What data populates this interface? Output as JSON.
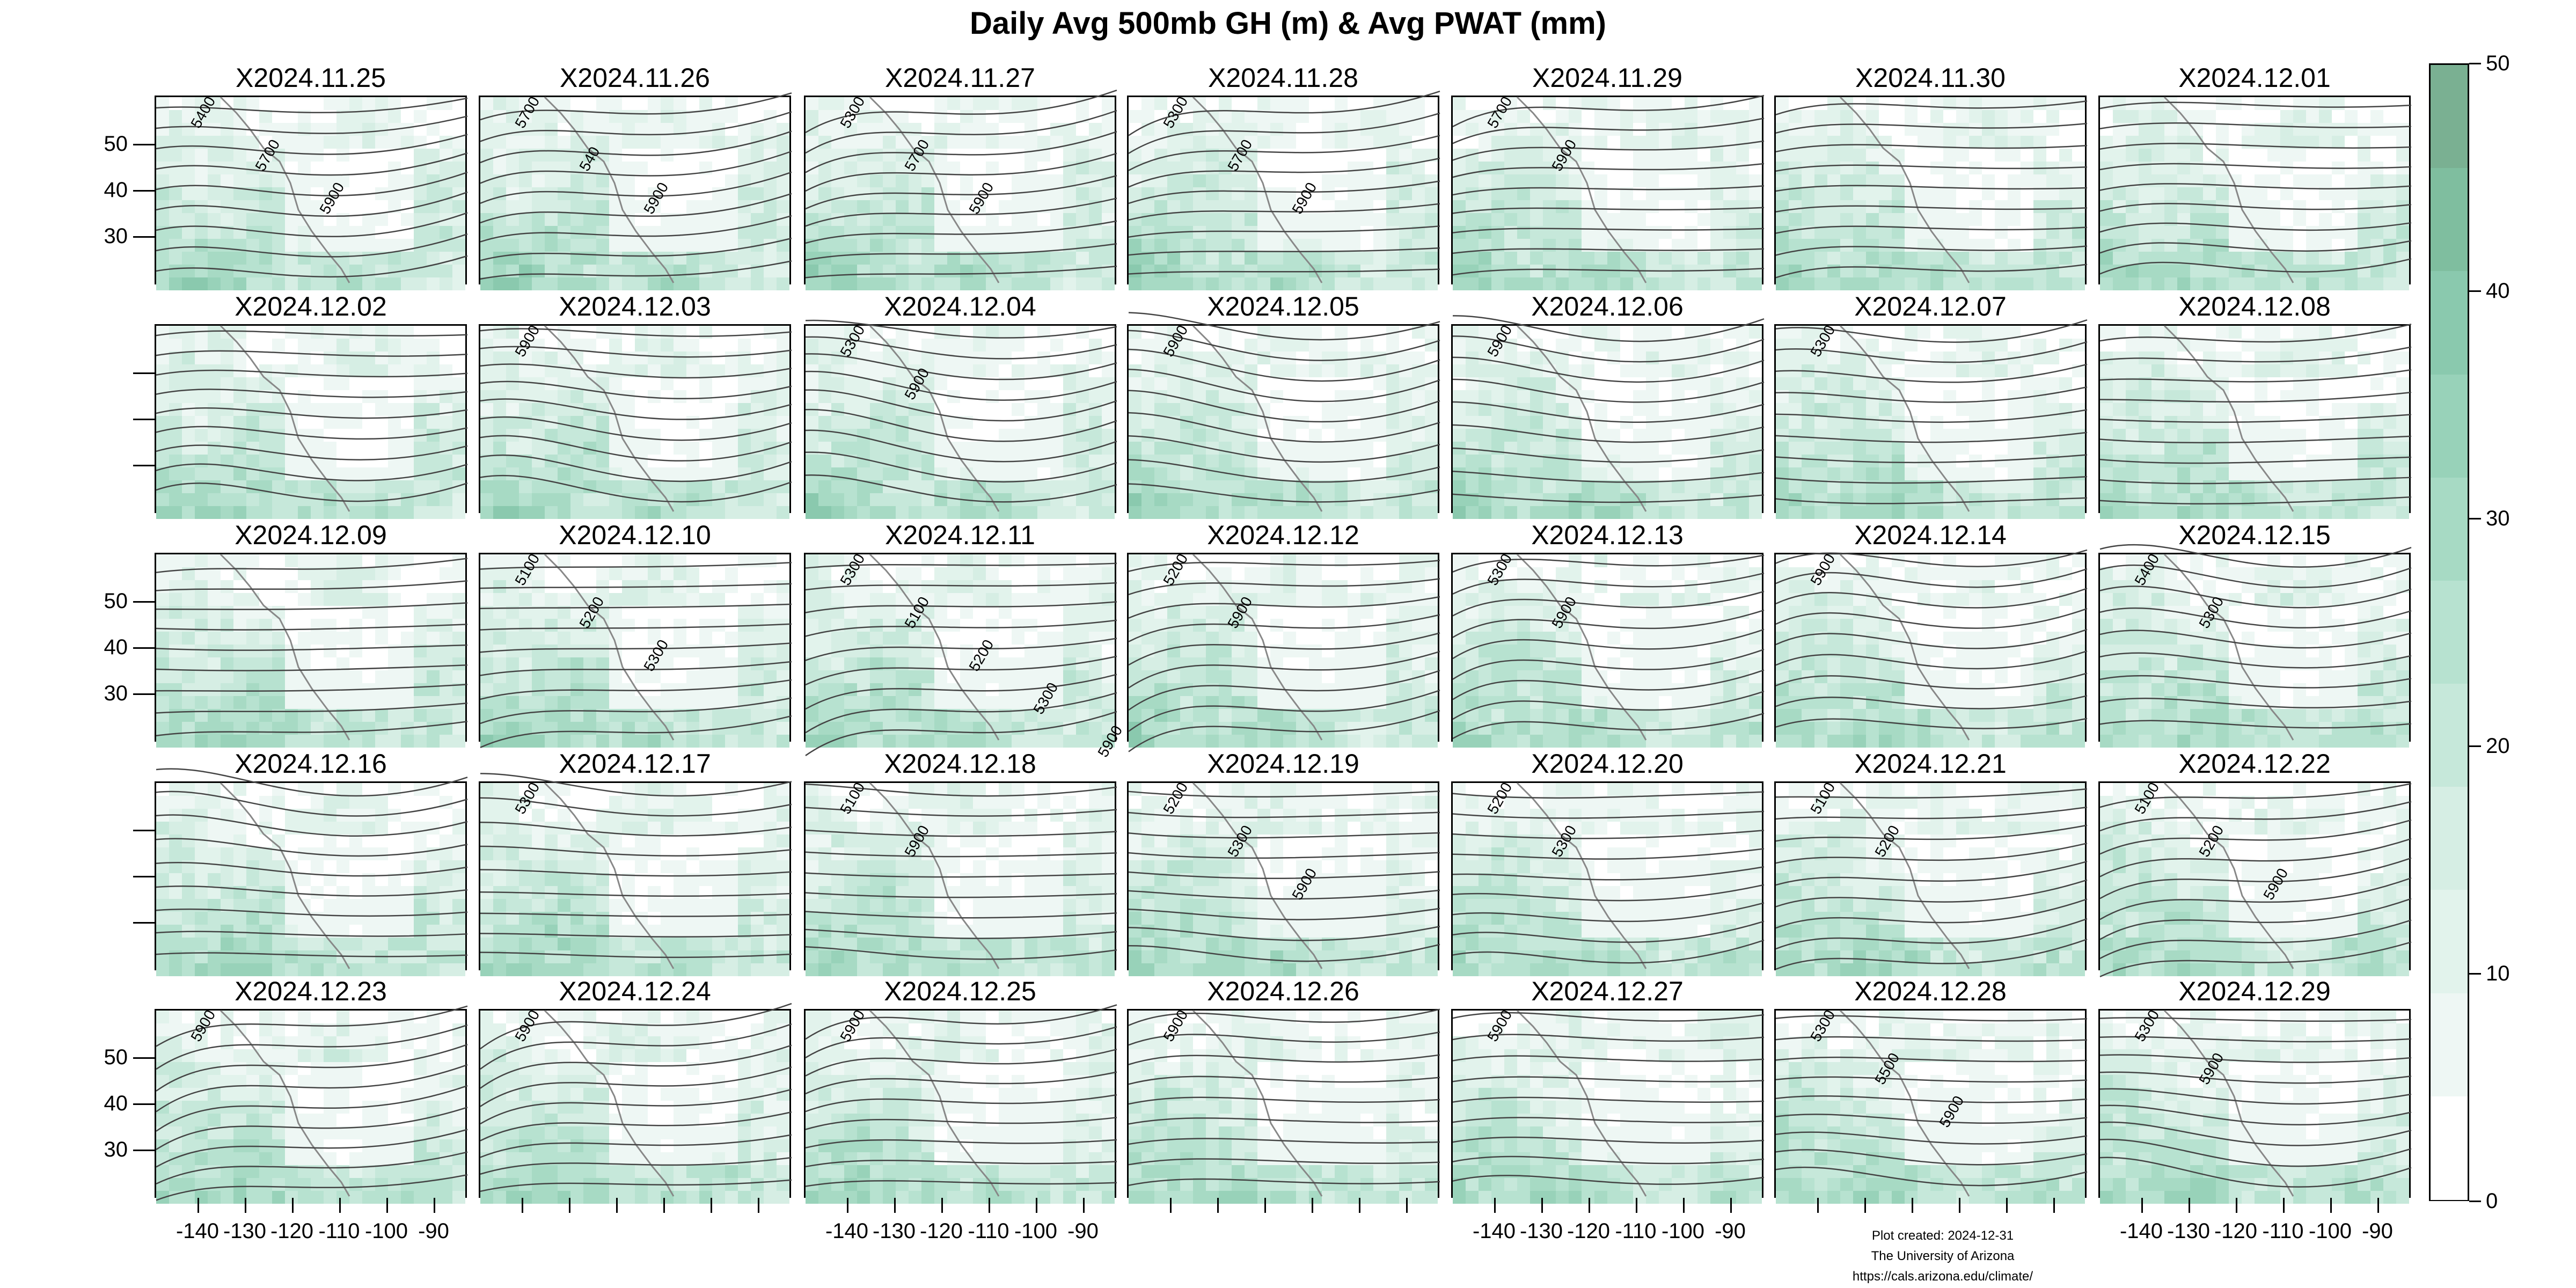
{
  "title": "Daily Avg 500mb GH (m) & Avg PWAT (mm)",
  "panels": [
    {
      "date": "X2024.11.25",
      "contour_labels": [
        "5400",
        "5700",
        "5900"
      ]
    },
    {
      "date": "X2024.11.26",
      "contour_labels": [
        "5700",
        "540",
        "5900"
      ]
    },
    {
      "date": "X2024.11.27",
      "contour_labels": [
        "5300",
        "5700",
        "5900"
      ]
    },
    {
      "date": "X2024.11.28",
      "contour_labels": [
        "5300",
        "5700",
        "5900"
      ]
    },
    {
      "date": "X2024.11.29",
      "contour_labels": [
        "5700",
        "5900"
      ]
    },
    {
      "date": "X2024.11.30",
      "contour_labels": []
    },
    {
      "date": "X2024.12.01",
      "contour_labels": []
    },
    {
      "date": "X2024.12.02",
      "contour_labels": []
    },
    {
      "date": "X2024.12.03",
      "contour_labels": [
        "5900"
      ]
    },
    {
      "date": "X2024.12.04",
      "contour_labels": [
        "5300",
        "5900"
      ]
    },
    {
      "date": "X2024.12.05",
      "contour_labels": [
        "5900"
      ]
    },
    {
      "date": "X2024.12.06",
      "contour_labels": [
        "5900"
      ]
    },
    {
      "date": "X2024.12.07",
      "contour_labels": [
        "5300"
      ]
    },
    {
      "date": "X2024.12.08",
      "contour_labels": []
    },
    {
      "date": "X2024.12.09",
      "contour_labels": []
    },
    {
      "date": "X2024.12.10",
      "contour_labels": [
        "5100",
        "5200",
        "5300"
      ]
    },
    {
      "date": "X2024.12.11",
      "contour_labels": [
        "5300",
        "5100",
        "5200",
        "5300",
        "5900"
      ]
    },
    {
      "date": "X2024.12.12",
      "contour_labels": [
        "5200",
        "5900"
      ]
    },
    {
      "date": "X2024.12.13",
      "contour_labels": [
        "5300",
        "5900"
      ]
    },
    {
      "date": "X2024.12.14",
      "contour_labels": [
        "5900"
      ]
    },
    {
      "date": "X2024.12.15",
      "contour_labels": [
        "5400",
        "5300"
      ]
    },
    {
      "date": "X2024.12.16",
      "contour_labels": []
    },
    {
      "date": "X2024.12.17",
      "contour_labels": [
        "5300"
      ]
    },
    {
      "date": "X2024.12.18",
      "contour_labels": [
        "5100",
        "5900"
      ]
    },
    {
      "date": "X2024.12.19",
      "contour_labels": [
        "5200",
        "5300",
        "5900"
      ]
    },
    {
      "date": "X2024.12.20",
      "contour_labels": [
        "5200",
        "5300"
      ]
    },
    {
      "date": "X2024.12.21",
      "contour_labels": [
        "5100",
        "5200"
      ]
    },
    {
      "date": "X2024.12.22",
      "contour_labels": [
        "5100",
        "5200",
        "5900"
      ]
    },
    {
      "date": "X2024.12.23",
      "contour_labels": [
        "5900"
      ]
    },
    {
      "date": "X2024.12.24",
      "contour_labels": [
        "5900"
      ]
    },
    {
      "date": "X2024.12.25",
      "contour_labels": [
        "5900"
      ]
    },
    {
      "date": "X2024.12.26",
      "contour_labels": [
        "5900"
      ]
    },
    {
      "date": "X2024.12.27",
      "contour_labels": [
        "5900"
      ]
    },
    {
      "date": "X2024.12.28",
      "contour_labels": [
        "5300",
        "5500",
        "5900"
      ]
    },
    {
      "date": "X2024.12.29",
      "contour_labels": [
        "5300",
        "5900"
      ]
    }
  ],
  "y_axis": {
    "ticks": [
      "50",
      "40",
      "30"
    ]
  },
  "x_axis": {
    "ticks": [
      "-140",
      "-130",
      "-120",
      "-110",
      "-100",
      "-90"
    ]
  },
  "colorbar": {
    "ticks": [
      "50",
      "40",
      "30",
      "20",
      "10",
      "0"
    ],
    "colors": [
      "#ffffff",
      "#eef7f4",
      "#e2f3ec",
      "#d6eee4",
      "#c6e8da",
      "#b7e2d0",
      "#a7dac4",
      "#98d2b9",
      "#8ac9ae",
      "#7fbe9f",
      "#7ab092"
    ]
  },
  "credit": {
    "line1": "Plot created: 2024-12-31",
    "line2": "The University of Arizona",
    "line3": "https://cals.arizona.edu/climate/"
  }
}
